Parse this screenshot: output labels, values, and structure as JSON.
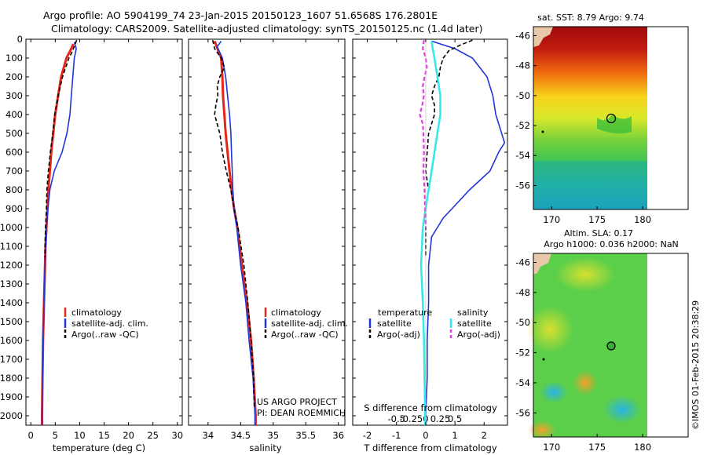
{
  "header": {
    "title_line1": "Argo profile: AO 5904199_74 23-Jan-2015 20150123_1607 51.6568S 176.2801E",
    "title_line2": "Climatology: CARS2009. Satellite-adjusted climatology: synTS_20150125.nc (1.4d later)"
  },
  "colors": {
    "climatology": "#e8251b",
    "satellite": "#1f36d6",
    "argo": "#000000",
    "salinity_satellite": "#33e8ea",
    "salinity_argo": "#e63ce6"
  },
  "chart_data": [
    {
      "type": "line",
      "name": "temperature",
      "xlabel": "temperature (deg C)",
      "ylabel": "",
      "xlim": [
        -1,
        31
      ],
      "ylim": [
        2050,
        0
      ],
      "xticks": [
        0,
        5,
        10,
        15,
        20,
        25,
        30
      ],
      "yticks": [
        0,
        100,
        200,
        300,
        400,
        500,
        600,
        700,
        800,
        900,
        1000,
        1100,
        1200,
        1300,
        1400,
        1500,
        1600,
        1700,
        1800,
        1900,
        2000
      ],
      "legend": [
        "climatology",
        "satellite-adj. clim.",
        "Argo(..raw -QC)"
      ],
      "legend_position": "lower-middle",
      "series": [
        {
          "name": "climatology",
          "y": [
            25,
            50,
            100,
            200,
            300,
            400,
            500,
            600,
            700,
            800,
            900,
            1000,
            1100,
            1200,
            1400,
            1600,
            1800,
            2000,
            2050
          ],
          "values": [
            8.7,
            8.3,
            7.3,
            6.2,
            5.6,
            5.0,
            4.6,
            4.2,
            3.9,
            3.6,
            3.4,
            3.2,
            3.0,
            2.9,
            2.7,
            2.5,
            2.4,
            2.3,
            2.3
          ]
        },
        {
          "name": "satellite-adj. clim.",
          "y": [
            15,
            50,
            100,
            200,
            300,
            400,
            500,
            600,
            700,
            800,
            900,
            1000,
            1100,
            1200,
            1400,
            1600,
            1800,
            2000,
            2050
          ],
          "values": [
            8.9,
            9.3,
            8.9,
            8.6,
            8.3,
            8.0,
            7.4,
            6.4,
            4.8,
            3.9,
            3.5,
            3.2,
            3.0,
            2.9,
            2.7,
            2.5,
            2.4,
            2.3,
            2.3
          ]
        },
        {
          "name": "Argo(..raw -QC)",
          "y": [
            5,
            30,
            60,
            100,
            200,
            300,
            400,
            500,
            600,
            700,
            800,
            900,
            1000,
            1100,
            1160
          ],
          "values": [
            9.4,
            9.0,
            8.6,
            7.8,
            6.5,
            5.6,
            4.9,
            4.5,
            4.0,
            3.6,
            3.3,
            3.2,
            3.0,
            2.9,
            2.9
          ]
        }
      ]
    },
    {
      "type": "line",
      "name": "salinity",
      "xlabel": "salinity",
      "ylabel": "",
      "xlim": [
        33.7,
        36.1
      ],
      "ylim": [
        2050,
        0
      ],
      "xticks": [
        34,
        34.5,
        35,
        35.5,
        36
      ],
      "legend": [
        "climatology",
        "satellite-adj. clim.",
        "Argo(..raw -QC)"
      ],
      "legend_position": "lower-middle",
      "annotation": [
        "US ARGO PROJECT",
        "PI: DEAN ROEMMICH"
      ],
      "series": [
        {
          "name": "climatology",
          "y": [
            10,
            100,
            200,
            300,
            400,
            500,
            600,
            700,
            800,
            900,
            1000,
            1200,
            1400,
            1600,
            1800,
            2000,
            2050
          ],
          "values": [
            34.1,
            34.2,
            34.22,
            34.23,
            34.25,
            34.27,
            34.3,
            34.33,
            34.36,
            34.4,
            34.45,
            34.52,
            34.6,
            34.66,
            34.7,
            34.73,
            34.73
          ]
        },
        {
          "name": "satellite-adj. clim.",
          "y": [
            10,
            40,
            100,
            200,
            300,
            400,
            500,
            600,
            700,
            800,
            900,
            1000,
            1200,
            1400,
            1600,
            1800,
            2000,
            2050
          ],
          "values": [
            34.2,
            34.14,
            34.22,
            34.27,
            34.3,
            34.33,
            34.35,
            34.36,
            34.37,
            34.38,
            34.4,
            34.44,
            34.5,
            34.58,
            34.63,
            34.69,
            34.72,
            34.72
          ]
        },
        {
          "name": "Argo(..raw -QC)",
          "y": [
            5,
            50,
            100,
            150,
            200,
            250,
            300,
            350,
            400,
            450,
            500,
            600,
            700,
            800,
            900,
            1000,
            1200,
            1400,
            1600,
            1800,
            1960
          ],
          "values": [
            34.07,
            34.1,
            34.2,
            34.25,
            34.18,
            34.14,
            34.15,
            34.12,
            34.1,
            34.14,
            34.18,
            34.22,
            34.28,
            34.35,
            34.4,
            34.46,
            34.55,
            34.61,
            34.66,
            34.7,
            34.71
          ]
        }
      ]
    },
    {
      "type": "line",
      "name": "difference",
      "xlabel": "T difference from climatology",
      "xlabel2": "S difference from climatology",
      "xlim": [
        -2.5,
        2.8
      ],
      "xticks": [
        -2,
        -1,
        0,
        1,
        2
      ],
      "xticks_s": [
        -0.5,
        -0.25,
        0,
        0.25,
        0.5
      ],
      "ylim": [
        2050,
        0
      ],
      "legend_temperature": {
        "heading": "temperature",
        "items": [
          "satellite",
          "Argo(-adj)"
        ]
      },
      "legend_salinity": {
        "heading": "salinity",
        "items": [
          "satellite",
          "Argo(-adj)"
        ]
      },
      "series": [
        {
          "name": "temperature satellite",
          "y": [
            10,
            50,
            100,
            200,
            300,
            400,
            500,
            550,
            600,
            700,
            800,
            900,
            950,
            1000,
            1050,
            1200,
            1400,
            1600,
            1800,
            2000,
            2050
          ],
          "values": [
            0.2,
            1.0,
            1.6,
            2.1,
            2.3,
            2.4,
            2.6,
            2.7,
            2.5,
            2.2,
            1.5,
            0.9,
            0.6,
            0.4,
            0.2,
            0.1,
            0.1,
            0.05,
            0.05,
            0.0,
            0.0
          ]
        },
        {
          "name": "temperature Argo(-adj)",
          "y": [
            5,
            30,
            60,
            100,
            150,
            200,
            250,
            300,
            350,
            400,
            450,
            500,
            600,
            700,
            800,
            900,
            1000,
            1100,
            1160
          ],
          "values": [
            1.6,
            1.2,
            0.8,
            0.6,
            0.5,
            0.45,
            0.3,
            0.2,
            0.3,
            0.3,
            0.2,
            0.1,
            0.05,
            0.0,
            0.1,
            0.0,
            0.0,
            0.0,
            0.0
          ]
        },
        {
          "name": "salinity satellite",
          "y": [
            10,
            50,
            100,
            200,
            300,
            400,
            500,
            600,
            700,
            800,
            900,
            1000,
            1200,
            1400,
            1600,
            1800,
            2000,
            2050
          ],
          "values": [
            0.1,
            0.12,
            0.15,
            0.2,
            0.25,
            0.25,
            0.2,
            0.15,
            0.1,
            0.05,
            0.0,
            -0.05,
            -0.08,
            -0.05,
            -0.03,
            -0.02,
            -0.01,
            -0.01
          ]
        },
        {
          "name": "salinity Argo(-adj)",
          "y": [
            5,
            50,
            100,
            150,
            200,
            250,
            300,
            350,
            400,
            450,
            500,
            600,
            700,
            800,
            900,
            1000
          ],
          "values": [
            -0.03,
            -0.05,
            0.0,
            0.02,
            -0.02,
            -0.05,
            -0.03,
            -0.06,
            -0.1,
            -0.05,
            -0.04,
            -0.03,
            -0.04,
            -0.02,
            -0.01,
            0.0
          ]
        }
      ]
    }
  ],
  "maps": {
    "sst": {
      "title": "sat. SST: 8.79 Argo: 9.74",
      "yticks": [
        -46,
        -48,
        -50,
        -52,
        -54,
        -56
      ],
      "xticks": [
        170,
        175,
        180
      ]
    },
    "sla": {
      "title_line1": "Altim. SLA: 0.17",
      "title_line2": "Argo h1000: 0.036 h2000: NaN",
      "yticks": [
        -46,
        -48,
        -50,
        -52,
        -54,
        -56
      ],
      "xticks": [
        170,
        175,
        180
      ]
    }
  },
  "footer": {
    "stamp": "©IMOS 01-Feb-2015 20:38:29"
  }
}
